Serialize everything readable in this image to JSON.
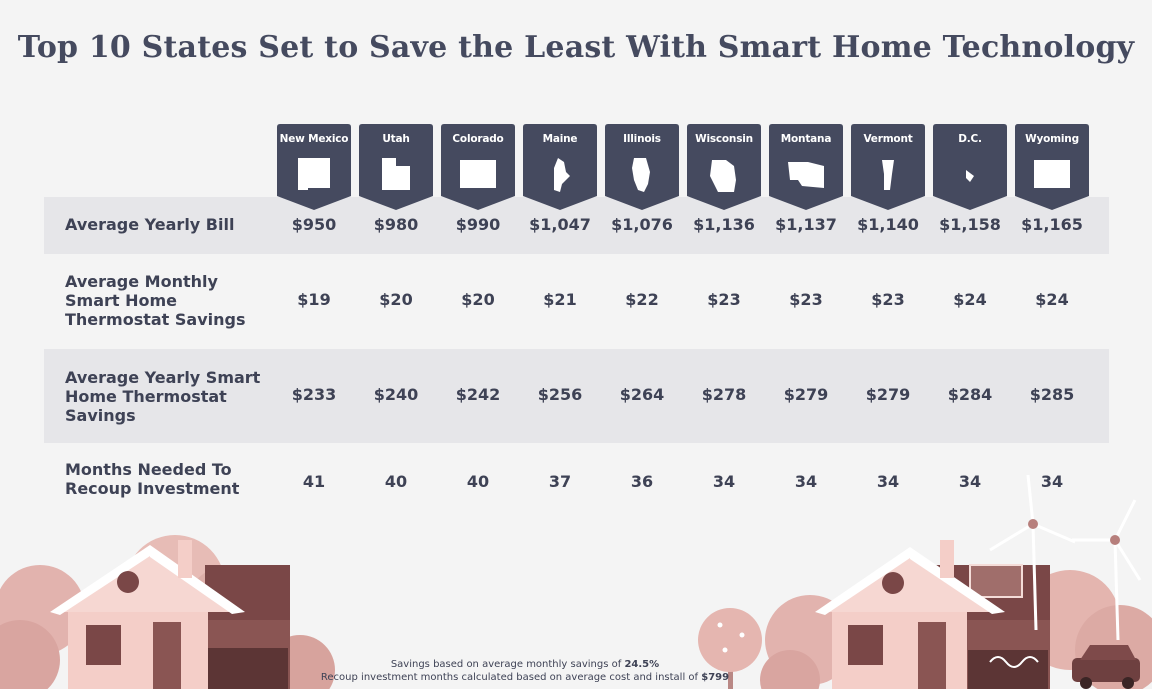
{
  "title": "Top 10 States Set to Save the Least With Smart Home Technology",
  "states": [
    "New Mexico",
    "Utah",
    "Colorado",
    "Maine",
    "Illinois",
    "Wisconsin",
    "Montana",
    "Vermont",
    "D.C.",
    "Wyoming"
  ],
  "rows": [
    {
      "label": "Average Yearly Bill",
      "values": [
        "$950",
        "$980",
        "$990",
        "$1,047",
        "$1,076",
        "$1,136",
        "$1,137",
        "$1,140",
        "$1,158",
        "$1,165"
      ]
    },
    {
      "label": "Average Monthly\nSmart Home\nThermostat Savings",
      "values": [
        "$19",
        "$20",
        "$20",
        "$21",
        "$22",
        "$23",
        "$23",
        "$23",
        "$24",
        "$24"
      ]
    },
    {
      "label": "Average Yearly Smart\nHome Thermostat\nSavings",
      "values": [
        "$233",
        "$240",
        "$242",
        "$256",
        "$264",
        "$278",
        "$279",
        "$279",
        "$284",
        "$285"
      ]
    },
    {
      "label": "Months Needed To\nRecoup Investment",
      "values": [
        "41",
        "40",
        "40",
        "37",
        "36",
        "34",
        "34",
        "34",
        "34",
        "34"
      ]
    }
  ],
  "notes": {
    "line1_prefix": "Savings based on average monthly savings of ",
    "line1_value": "24.5%",
    "line2_prefix": "Recoup investment months calculated based on average cost and install of ",
    "line2_value": "$799"
  },
  "chart_data": {
    "type": "table",
    "title": "Top 10 States Set to Save the Least With Smart Home Technology",
    "categories": [
      "New Mexico",
      "Utah",
      "Colorado",
      "Maine",
      "Illinois",
      "Wisconsin",
      "Montana",
      "Vermont",
      "D.C.",
      "Wyoming"
    ],
    "series": [
      {
        "name": "Average Yearly Bill",
        "values": [
          950,
          980,
          990,
          1047,
          1076,
          1136,
          1137,
          1140,
          1158,
          1165
        ]
      },
      {
        "name": "Average Monthly Smart Home Thermostat Savings",
        "values": [
          19,
          20,
          20,
          21,
          22,
          23,
          23,
          23,
          24,
          24
        ]
      },
      {
        "name": "Average Yearly Smart Home Thermostat Savings",
        "values": [
          233,
          240,
          242,
          256,
          264,
          278,
          279,
          279,
          284,
          285
        ]
      },
      {
        "name": "Months Needed To Recoup Investment",
        "values": [
          41,
          40,
          40,
          37,
          36,
          34,
          34,
          34,
          34,
          34
        ]
      }
    ]
  },
  "colors": {
    "background": "#f4f4f4",
    "band": "#e6e6e9",
    "tag": "#454a5f",
    "text": "#3e4255",
    "house_light": "#f2c9c3",
    "house_dark": "#7e4a4a",
    "tree": "#d8a4a0"
  }
}
